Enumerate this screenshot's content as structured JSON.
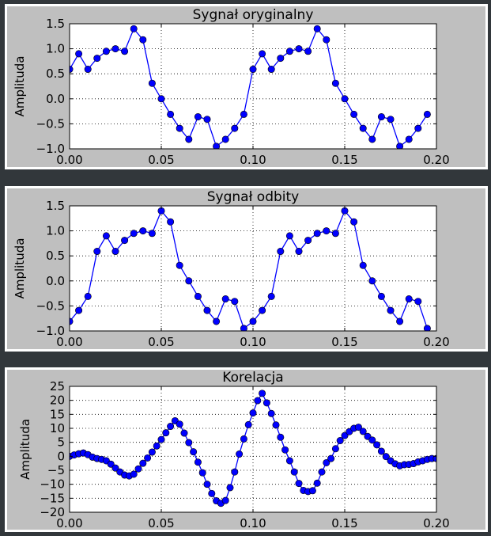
{
  "chart_data": [
    {
      "type": "line",
      "title": "Sygnał oryginalny",
      "xlabel": "",
      "ylabel": "Amplituda",
      "xlim": [
        0.0,
        0.2
      ],
      "ylim": [
        -1.0,
        1.5
      ],
      "xticks": [
        0.0,
        0.05,
        0.1,
        0.15,
        0.2
      ],
      "xtick_labels": [
        "0.00",
        "0.05",
        "0.10",
        "0.15",
        "0.20"
      ],
      "yticks": [
        -1.0,
        -0.5,
        0.0,
        0.5,
        1.0,
        1.5
      ],
      "ytick_labels": [
        "−1.0",
        "−0.5",
        "0.0",
        "0.5",
        "1.0",
        "1.5"
      ],
      "grid": true,
      "color": "#0000ff",
      "marker": "circle",
      "series": [
        {
          "x": [
            0.0,
            0.005,
            0.01,
            0.015,
            0.02,
            0.025,
            0.03,
            0.035,
            0.04,
            0.045,
            0.05,
            0.055,
            0.06,
            0.065,
            0.07,
            0.075,
            0.08,
            0.085,
            0.09,
            0.095,
            0.1,
            0.105,
            0.11,
            0.115,
            0.12,
            0.125,
            0.13,
            0.135,
            0.14,
            0.145,
            0.15,
            0.155,
            0.16,
            0.165,
            0.17,
            0.175,
            0.18,
            0.185,
            0.19,
            0.195
          ],
          "y": [
            0.59,
            0.9,
            0.59,
            0.81,
            0.95,
            1.0,
            0.95,
            1.4,
            1.18,
            0.31,
            0.0,
            -0.31,
            -0.59,
            -0.81,
            -0.36,
            -0.41,
            -0.95,
            -0.81,
            -0.59,
            -0.31,
            0.59,
            0.9,
            0.59,
            0.81,
            0.95,
            1.0,
            0.95,
            1.4,
            1.18,
            0.31,
            0.0,
            -0.31,
            -0.59,
            -0.81,
            -0.36,
            -0.41,
            -0.95,
            -0.81,
            -0.59,
            -0.31
          ]
        }
      ]
    },
    {
      "type": "line",
      "title": "Sygnał odbity",
      "xlabel": "",
      "ylabel": "Amplituda",
      "xlim": [
        0.0,
        0.2
      ],
      "ylim": [
        -1.0,
        1.5
      ],
      "xticks": [
        0.0,
        0.05,
        0.1,
        0.15,
        0.2
      ],
      "xtick_labels": [
        "0.00",
        "0.05",
        "0.10",
        "0.15",
        "0.20"
      ],
      "yticks": [
        -1.0,
        -0.5,
        0.0,
        0.5,
        1.0,
        1.5
      ],
      "ytick_labels": [
        "−1.0",
        "−0.5",
        "0.0",
        "0.5",
        "1.0",
        "1.5"
      ],
      "grid": true,
      "color": "#0000ff",
      "marker": "circle",
      "series": [
        {
          "x": [
            0.0,
            0.005,
            0.01,
            0.015,
            0.02,
            0.025,
            0.03,
            0.035,
            0.04,
            0.045,
            0.05,
            0.055,
            0.06,
            0.065,
            0.07,
            0.075,
            0.08,
            0.085,
            0.09,
            0.095,
            0.1,
            0.105,
            0.11,
            0.115,
            0.12,
            0.125,
            0.13,
            0.135,
            0.14,
            0.145,
            0.15,
            0.155,
            0.16,
            0.165,
            0.17,
            0.175,
            0.18,
            0.185,
            0.19,
            0.195
          ],
          "y": [
            -0.81,
            -0.59,
            -0.31,
            0.59,
            0.9,
            0.59,
            0.81,
            0.95,
            1.0,
            0.95,
            1.4,
            1.18,
            0.31,
            0.0,
            -0.31,
            -0.59,
            -0.81,
            -0.36,
            -0.41,
            -0.95,
            -0.81,
            -0.59,
            -0.31,
            0.59,
            0.9,
            0.59,
            0.81,
            0.95,
            1.0,
            0.95,
            1.4,
            1.18,
            0.31,
            0.0,
            -0.31,
            -0.59,
            -0.81,
            -0.36,
            -0.41,
            -0.95
          ]
        }
      ]
    },
    {
      "type": "line",
      "title": "Korelacja",
      "xlabel": "",
      "ylabel": "Amplituda",
      "xlim": [
        0.0,
        0.2
      ],
      "ylim": [
        -20,
        25
      ],
      "xticks": [
        0.0,
        0.05,
        0.1,
        0.15,
        0.2
      ],
      "xtick_labels": [
        "0.00",
        "0.05",
        "0.10",
        "0.15",
        "0.20"
      ],
      "yticks": [
        -20,
        -15,
        -10,
        -5,
        0,
        5,
        10,
        15,
        20,
        25
      ],
      "ytick_labels": [
        "−20",
        "−15",
        "−10",
        "−5",
        "0",
        "5",
        "10",
        "15",
        "20",
        "25"
      ],
      "grid": true,
      "color": "#0000ff",
      "marker": "circle",
      "series": [
        {
          "x": [
            0.0,
            0.0025,
            0.005,
            0.0075,
            0.01,
            0.0125,
            0.015,
            0.0175,
            0.02,
            0.0225,
            0.025,
            0.0275,
            0.03,
            0.0325,
            0.035,
            0.0375,
            0.04,
            0.0425,
            0.045,
            0.0475,
            0.05,
            0.0525,
            0.055,
            0.0575,
            0.06,
            0.0625,
            0.065,
            0.0675,
            0.07,
            0.0725,
            0.075,
            0.0775,
            0.08,
            0.0825,
            0.085,
            0.0875,
            0.09,
            0.0925,
            0.095,
            0.0975,
            0.1,
            0.1025,
            0.105,
            0.1075,
            0.11,
            0.1125,
            0.115,
            0.1175,
            0.12,
            0.1225,
            0.125,
            0.1275,
            0.13,
            0.1325,
            0.135,
            0.1375,
            0.14,
            0.1425,
            0.145,
            0.1475,
            0.15,
            0.1525,
            0.155,
            0.1575,
            0.16,
            0.1625,
            0.165,
            0.1675,
            0.17,
            0.1725,
            0.175,
            0.1775,
            0.18,
            0.1825,
            0.185,
            0.1875,
            0.19,
            0.1925,
            0.195,
            0.1975,
            0.2
          ],
          "y": [
            0.0,
            0.5,
            0.9,
            1.2,
            0.6,
            -0.3,
            -0.8,
            -1.1,
            -1.6,
            -2.8,
            -4.2,
            -5.6,
            -6.7,
            -7.0,
            -6.4,
            -4.5,
            -2.5,
            -0.6,
            1.5,
            3.7,
            6.0,
            8.4,
            10.7,
            12.7,
            11.5,
            8.3,
            4.9,
            1.6,
            -2.1,
            -5.9,
            -10.0,
            -13.3,
            -15.9,
            -16.8,
            -15.8,
            -11.2,
            -5.6,
            0.8,
            6.2,
            11.3,
            15.5,
            19.9,
            22.5,
            19.1,
            15.3,
            11.2,
            6.8,
            2.3,
            -1.6,
            -5.6,
            -9.7,
            -12.2,
            -12.6,
            -12.3,
            -9.6,
            -5.6,
            -2.3,
            -0.8,
            2.7,
            5.6,
            7.4,
            8.8,
            10.0,
            10.4,
            8.9,
            7.1,
            5.8,
            4.1,
            1.8,
            -0.1,
            -1.6,
            -2.7,
            -3.4,
            -3.0,
            -2.9,
            -2.6,
            -2.0,
            -1.6,
            -1.1,
            -0.8,
            -0.8
          ]
        }
      ]
    }
  ]
}
